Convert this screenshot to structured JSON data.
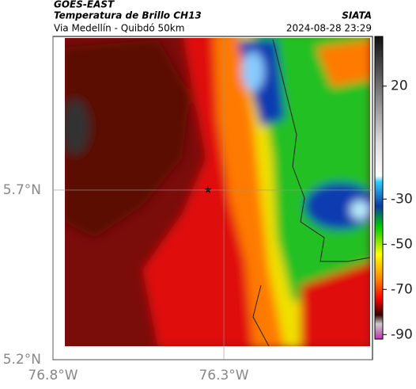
{
  "header": {
    "satellite": "GOES-EAST",
    "product": "Temperatura de Brillo CH13",
    "region": "Via Medellín - Quibdó 50km",
    "source": "SIATA",
    "datetime": "2024-08-28 23:29"
  },
  "map": {
    "xlim": [
      -76.8,
      -75.865
    ],
    "ylim": [
      5.2,
      6.153
    ],
    "xticks": [
      {
        "value": -76.8,
        "label": "76.8°W"
      },
      {
        "value": -76.3,
        "label": "76.3°W"
      }
    ],
    "yticks": [
      {
        "value": 5.2,
        "label": "5.2°N"
      },
      {
        "value": 5.7,
        "label": "5.7°N"
      }
    ],
    "grid": true
  },
  "colorbar": {
    "clim": [
      42,
      -92
    ],
    "ticks": [
      20,
      -30,
      -50,
      -70,
      -90
    ]
  }
}
